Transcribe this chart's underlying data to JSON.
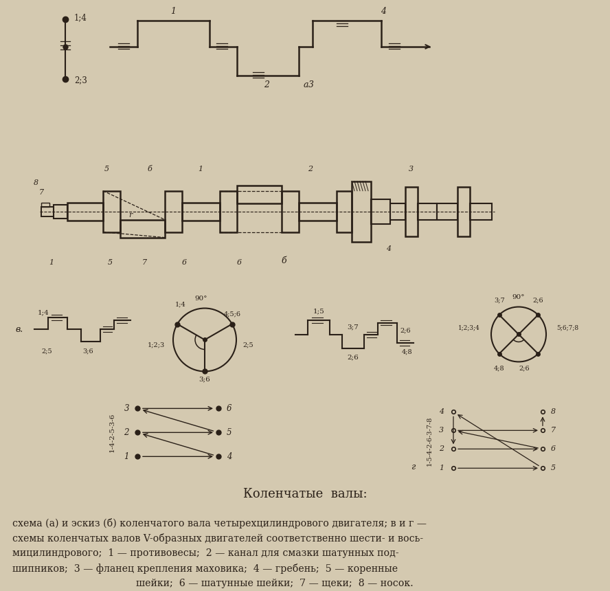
{
  "bg_color": "#d4c9b0",
  "line_color": "#2a2018",
  "title": "Коленчатые  валы:",
  "caption_line1": "схема (а) и эскиз (б) коленчатого вала четырехцилиндрового двигателя; в и г —",
  "caption_line2": "схемы коленчатых валов V-образных двигателей соответственно шести- и вось-",
  "caption_line3": "мицилиндрового;  1 — противовесы;  2 — канал для смазки шатунных под-",
  "caption_line4": "шипников;  3 — фланец крепления маховика;  4 — гребень;  5 — коренные",
  "caption_line5": "шейки;  6 — шатунные шейки;  7 — щеки;  8 — носок."
}
